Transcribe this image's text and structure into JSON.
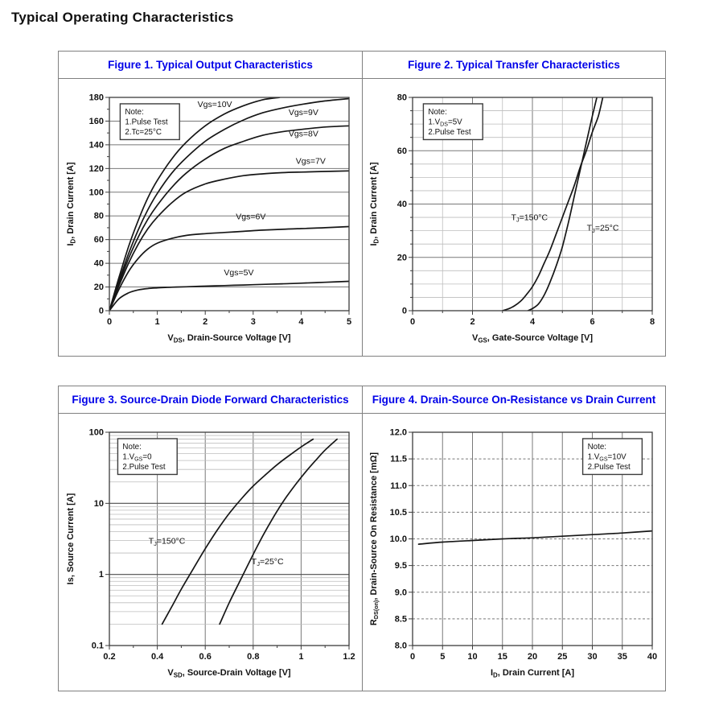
{
  "page": {
    "title": "Typical Operating Characteristics"
  },
  "colors": {
    "figure_title": "#0000e8",
    "curve": "#161616",
    "table_border": "#808080"
  },
  "chart_data": [
    {
      "id": "figure-1",
      "type": "line",
      "title": "Figure 1. Typical Output Characteristics",
      "note": {
        "lines": [
          "Note:",
          "1.Pulse Test",
          "2.Tc=25°C"
        ],
        "fx": 0.045,
        "fy": 0.03
      },
      "x_axis": {
        "label": "V_{DS}, Drain-Source Voltage [V]",
        "scale": "linear",
        "min": 0,
        "max": 5,
        "ticks": [
          {
            "v": 0,
            "t": "0"
          },
          {
            "v": 1,
            "t": "1"
          },
          {
            "v": 2,
            "t": "2"
          },
          {
            "v": 3,
            "t": "3"
          },
          {
            "v": 4,
            "t": "4"
          },
          {
            "v": 5,
            "t": "5"
          }
        ],
        "minor_tick_step": 0.5,
        "grid": {}
      },
      "y_axis": {
        "label": "I_{D}, Drain Current [A]",
        "scale": "linear",
        "min": 0,
        "max": 180,
        "ticks": [
          {
            "v": 0,
            "t": "0"
          },
          {
            "v": 20,
            "t": "20"
          },
          {
            "v": 40,
            "t": "40"
          },
          {
            "v": 60,
            "t": "60"
          },
          {
            "v": 80,
            "t": "80"
          },
          {
            "v": 100,
            "t": "100"
          },
          {
            "v": 120,
            "t": "120"
          },
          {
            "v": 140,
            "t": "140"
          },
          {
            "v": 160,
            "t": "160"
          },
          {
            "v": 180,
            "t": "180"
          }
        ],
        "minor_tick_step": 10,
        "grid": {
          "major_step": 20
        }
      },
      "series": [
        {
          "name": "Vgs=10V",
          "points": [
            [
              0,
              0
            ],
            [
              0.2,
              28
            ],
            [
              0.4,
              54
            ],
            [
              0.6,
              76
            ],
            [
              0.8,
              95
            ],
            [
              1,
              110
            ],
            [
              1.3,
              128
            ],
            [
              1.6,
              142
            ],
            [
              2,
              156
            ],
            [
              2.4,
              166
            ],
            [
              2.8,
              173
            ],
            [
              3.2,
              178
            ],
            [
              3.55,
              180
            ]
          ],
          "label": {
            "text": "Vgs=10V",
            "x": 2.2,
            "y": 172,
            "anchor": "middle"
          }
        },
        {
          "name": "Vgs=9V",
          "points": [
            [
              0,
              0
            ],
            [
              0.2,
              25
            ],
            [
              0.4,
              48
            ],
            [
              0.6,
              68
            ],
            [
              0.8,
              85
            ],
            [
              1,
              99
            ],
            [
              1.3,
              116
            ],
            [
              1.6,
              129
            ],
            [
              2,
              143
            ],
            [
              2.4,
              153
            ],
            [
              2.8,
              161
            ],
            [
              3.2,
              167
            ],
            [
              3.6,
              171
            ],
            [
              4,
              174
            ],
            [
              4.5,
              177
            ],
            [
              5,
              179
            ]
          ],
          "label": {
            "text": "Vgs=9V",
            "x": 4.05,
            "y": 165,
            "anchor": "middle"
          }
        },
        {
          "name": "Vgs=8V",
          "points": [
            [
              0,
              0
            ],
            [
              0.2,
              23
            ],
            [
              0.4,
              44
            ],
            [
              0.6,
              62
            ],
            [
              0.8,
              77
            ],
            [
              1,
              89
            ],
            [
              1.3,
              104
            ],
            [
              1.6,
              116
            ],
            [
              2,
              128
            ],
            [
              2.4,
              137
            ],
            [
              2.8,
              143
            ],
            [
              3.2,
              148
            ],
            [
              3.6,
              151
            ],
            [
              4,
              153
            ],
            [
              4.5,
              155
            ],
            [
              5,
              156
            ]
          ],
          "label": {
            "text": "Vgs=8V",
            "x": 4.05,
            "y": 147,
            "anchor": "middle"
          }
        },
        {
          "name": "Vgs=7V",
          "points": [
            [
              0,
              0
            ],
            [
              0.2,
              21
            ],
            [
              0.4,
              40
            ],
            [
              0.6,
              56
            ],
            [
              0.8,
              69
            ],
            [
              1,
              79
            ],
            [
              1.3,
              91
            ],
            [
              1.6,
              100
            ],
            [
              2,
              107
            ],
            [
              2.4,
              111
            ],
            [
              2.8,
              114
            ],
            [
              3.2,
              115.5
            ],
            [
              3.6,
              116.5
            ],
            [
              4,
              117
            ],
            [
              4.5,
              117.5
            ],
            [
              5,
              118
            ]
          ],
          "label": {
            "text": "Vgs=7V",
            "x": 4.2,
            "y": 124,
            "anchor": "middle"
          }
        },
        {
          "name": "Vgs=6V",
          "points": [
            [
              0,
              0
            ],
            [
              0.2,
              18
            ],
            [
              0.4,
              33
            ],
            [
              0.6,
              44
            ],
            [
              0.8,
              52
            ],
            [
              1,
              57
            ],
            [
              1.3,
              61
            ],
            [
              1.6,
              63.5
            ],
            [
              2,
              65
            ],
            [
              2.4,
              66
            ],
            [
              2.8,
              67
            ],
            [
              3.2,
              68
            ],
            [
              3.6,
              68.7
            ],
            [
              4,
              69.3
            ],
            [
              4.5,
              70
            ],
            [
              5,
              71
            ]
          ],
          "label": {
            "text": "Vgs=6V",
            "x": 2.95,
            "y": 77,
            "anchor": "middle"
          }
        },
        {
          "name": "Vgs=5V",
          "points": [
            [
              0,
              0
            ],
            [
              0.2,
              10
            ],
            [
              0.4,
              15
            ],
            [
              0.6,
              17.5
            ],
            [
              0.8,
              18.7
            ],
            [
              1,
              19.3
            ],
            [
              1.3,
              19.8
            ],
            [
              1.6,
              20.2
            ],
            [
              2,
              20.7
            ],
            [
              2.4,
              21.2
            ],
            [
              2.8,
              21.7
            ],
            [
              3.2,
              22.2
            ],
            [
              3.6,
              22.7
            ],
            [
              4,
              23.2
            ],
            [
              4.5,
              24
            ],
            [
              5,
              24.8
            ]
          ],
          "label": {
            "text": "Vgs=5V",
            "x": 2.7,
            "y": 30,
            "anchor": "middle"
          }
        }
      ]
    },
    {
      "id": "figure-2",
      "type": "line",
      "title": "Figure 2. Typical Transfer Characteristics",
      "note": {
        "lines": [
          "Note:",
          "1.V_{DS}=5V",
          "2.Pulse Test"
        ],
        "fx": 0.045,
        "fy": 0.03
      },
      "x_axis": {
        "label": "V_{GS}, Gate-Source Voltage [V]",
        "scale": "linear",
        "min": 0,
        "max": 8,
        "ticks": [
          {
            "v": 0,
            "t": "0"
          },
          {
            "v": 2,
            "t": "2"
          },
          {
            "v": 4,
            "t": "4"
          },
          {
            "v": 6,
            "t": "6"
          },
          {
            "v": 8,
            "t": "8"
          }
        ],
        "minor_tick_step": 1,
        "grid": {
          "minor_step": 1,
          "major_step": 2
        }
      },
      "y_axis": {
        "label": "I_{D}, Drain Current [A]",
        "scale": "linear",
        "min": 0,
        "max": 80,
        "ticks": [
          {
            "v": 0,
            "t": "0"
          },
          {
            "v": 20,
            "t": "20"
          },
          {
            "v": 40,
            "t": "40"
          },
          {
            "v": 60,
            "t": "60"
          },
          {
            "v": 80,
            "t": "80"
          }
        ],
        "minor_tick_step": 5,
        "grid": {
          "minor_step": 5,
          "major_step": 20
        }
      },
      "series": [
        {
          "name": "TJ=150C",
          "points": [
            [
              3.0,
              0
            ],
            [
              3.2,
              0.7
            ],
            [
              3.4,
              1.8
            ],
            [
              3.6,
              3.5
            ],
            [
              3.8,
              6
            ],
            [
              4.0,
              9
            ],
            [
              4.2,
              13
            ],
            [
              4.4,
              18
            ],
            [
              4.6,
              23
            ],
            [
              4.8,
              29
            ],
            [
              5.0,
              35
            ],
            [
              5.2,
              41
            ],
            [
              5.4,
              47
            ],
            [
              5.6,
              54
            ],
            [
              5.8,
              60
            ],
            [
              6.0,
              67
            ],
            [
              6.2,
              73
            ],
            [
              6.35,
              80
            ]
          ],
          "label": {
            "text": "T_{J}=150°C",
            "x": 3.9,
            "y": 34,
            "anchor": "middle"
          }
        },
        {
          "name": "TJ=25C",
          "points": [
            [
              3.85,
              0
            ],
            [
              4.0,
              0.8
            ],
            [
              4.2,
              2.5
            ],
            [
              4.4,
              6
            ],
            [
              4.6,
              11
            ],
            [
              4.8,
              17
            ],
            [
              5.0,
              24
            ],
            [
              5.2,
              33
            ],
            [
              5.4,
              43
            ],
            [
              5.6,
              53
            ],
            [
              5.8,
              63
            ],
            [
              6.0,
              73
            ],
            [
              6.15,
              80
            ]
          ],
          "label": {
            "text": "T_{J}=25°C",
            "x": 6.35,
            "y": 30,
            "anchor": "middle"
          }
        }
      ]
    },
    {
      "id": "figure-3",
      "type": "line",
      "title": "Figure 3. Source-Drain Diode Forward Characteristics",
      "note": {
        "lines": [
          "Note:",
          "1.V_{GS}=0",
          "2.Pulse Test"
        ],
        "fx": 0.035,
        "fy": 0.03
      },
      "x_axis": {
        "label": "V_{SD}, Source-Drain Voltage [V]",
        "scale": "linear",
        "min": 0.2,
        "max": 1.2,
        "ticks": [
          {
            "v": 0.2,
            "t": "0.2"
          },
          {
            "v": 0.4,
            "t": "0.4"
          },
          {
            "v": 0.6,
            "t": "0.6"
          },
          {
            "v": 0.8,
            "t": "0.8"
          },
          {
            "v": 1,
            "t": "1"
          },
          {
            "v": 1.2,
            "t": "1.2"
          }
        ],
        "minor_tick_step": 0.1,
        "grid": {
          "major_step": 0.2
        }
      },
      "y_axis": {
        "label": "Is, Source Current [A]",
        "scale": "log",
        "min": 0.1,
        "max": 100,
        "ticks": [
          {
            "v": 0.1,
            "t": "0.1"
          },
          {
            "v": 1,
            "t": "1"
          },
          {
            "v": 10,
            "t": "10"
          },
          {
            "v": 100,
            "t": "100"
          }
        ],
        "grid": {
          "log": true
        }
      },
      "series": [
        {
          "name": "TJ=150C",
          "points": [
            [
              0.42,
              0.2
            ],
            [
              0.46,
              0.35
            ],
            [
              0.5,
              0.62
            ],
            [
              0.55,
              1.2
            ],
            [
              0.6,
              2.3
            ],
            [
              0.65,
              4.2
            ],
            [
              0.7,
              7.2
            ],
            [
              0.75,
              11.5
            ],
            [
              0.8,
              17.5
            ],
            [
              0.85,
              25
            ],
            [
              0.9,
              35
            ],
            [
              0.95,
              47
            ],
            [
              1.0,
              62
            ],
            [
              1.05,
              80
            ]
          ],
          "label": {
            "text": "T_{J}=150°C",
            "x": 0.44,
            "y": 2.7,
            "anchor": "middle"
          }
        },
        {
          "name": "TJ=25C",
          "points": [
            [
              0.66,
              0.2
            ],
            [
              0.7,
              0.4
            ],
            [
              0.74,
              0.75
            ],
            [
              0.78,
              1.4
            ],
            [
              0.82,
              2.6
            ],
            [
              0.86,
              4.6
            ],
            [
              0.9,
              7.8
            ],
            [
              0.94,
              12.5
            ],
            [
              0.98,
              19
            ],
            [
              1.02,
              28
            ],
            [
              1.06,
              40
            ],
            [
              1.1,
              56
            ],
            [
              1.15,
              80
            ]
          ],
          "label": {
            "text": "T_{J}=25°C",
            "x": 0.86,
            "y": 1.4,
            "anchor": "middle"
          }
        }
      ]
    },
    {
      "id": "figure-4",
      "type": "line",
      "title": "Figure 4. Drain-Source On-Resistance vs Drain Current",
      "note": {
        "lines": [
          "Note:",
          "1.V_{GS}=10V",
          "2.Pulse Test"
        ],
        "fx": 0.71,
        "fy": 0.03
      },
      "x_axis": {
        "label": "I_{D}, Drain Current [A]",
        "scale": "linear",
        "min": 0,
        "max": 40,
        "ticks": [
          {
            "v": 0,
            "t": "0"
          },
          {
            "v": 5,
            "t": "5"
          },
          {
            "v": 10,
            "t": "10"
          },
          {
            "v": 15,
            "t": "15"
          },
          {
            "v": 20,
            "t": "20"
          },
          {
            "v": 25,
            "t": "25"
          },
          {
            "v": 30,
            "t": "30"
          },
          {
            "v": 35,
            "t": "35"
          },
          {
            "v": 40,
            "t": "40"
          }
        ],
        "grid": {
          "major_step": 5
        }
      },
      "y_axis": {
        "label": "R_{DS(on)}, Drain-Source On Resistance [mΩ]",
        "scale": "linear",
        "min": 8.0,
        "max": 12.0,
        "ticks": [
          {
            "v": 8,
            "t": "8.0"
          },
          {
            "v": 8.5,
            "t": "8.5"
          },
          {
            "v": 9,
            "t": "9.0"
          },
          {
            "v": 9.5,
            "t": "9.5"
          },
          {
            "v": 10,
            "t": "10.0"
          },
          {
            "v": 10.5,
            "t": "10.5"
          },
          {
            "v": 11,
            "t": "11.0"
          },
          {
            "v": 11.5,
            "t": "11.5"
          },
          {
            "v": 12,
            "t": "12.0"
          }
        ],
        "grid": {
          "major_step": 0.5,
          "dashed": true
        }
      },
      "series": [
        {
          "name": "RDSon",
          "points": [
            [
              1,
              9.9
            ],
            [
              5,
              9.94
            ],
            [
              10,
              9.97
            ],
            [
              15,
              10.0
            ],
            [
              20,
              10.02
            ],
            [
              25,
              10.05
            ],
            [
              30,
              10.08
            ],
            [
              35,
              10.11
            ],
            [
              40,
              10.15
            ]
          ],
          "label": null
        }
      ]
    }
  ]
}
